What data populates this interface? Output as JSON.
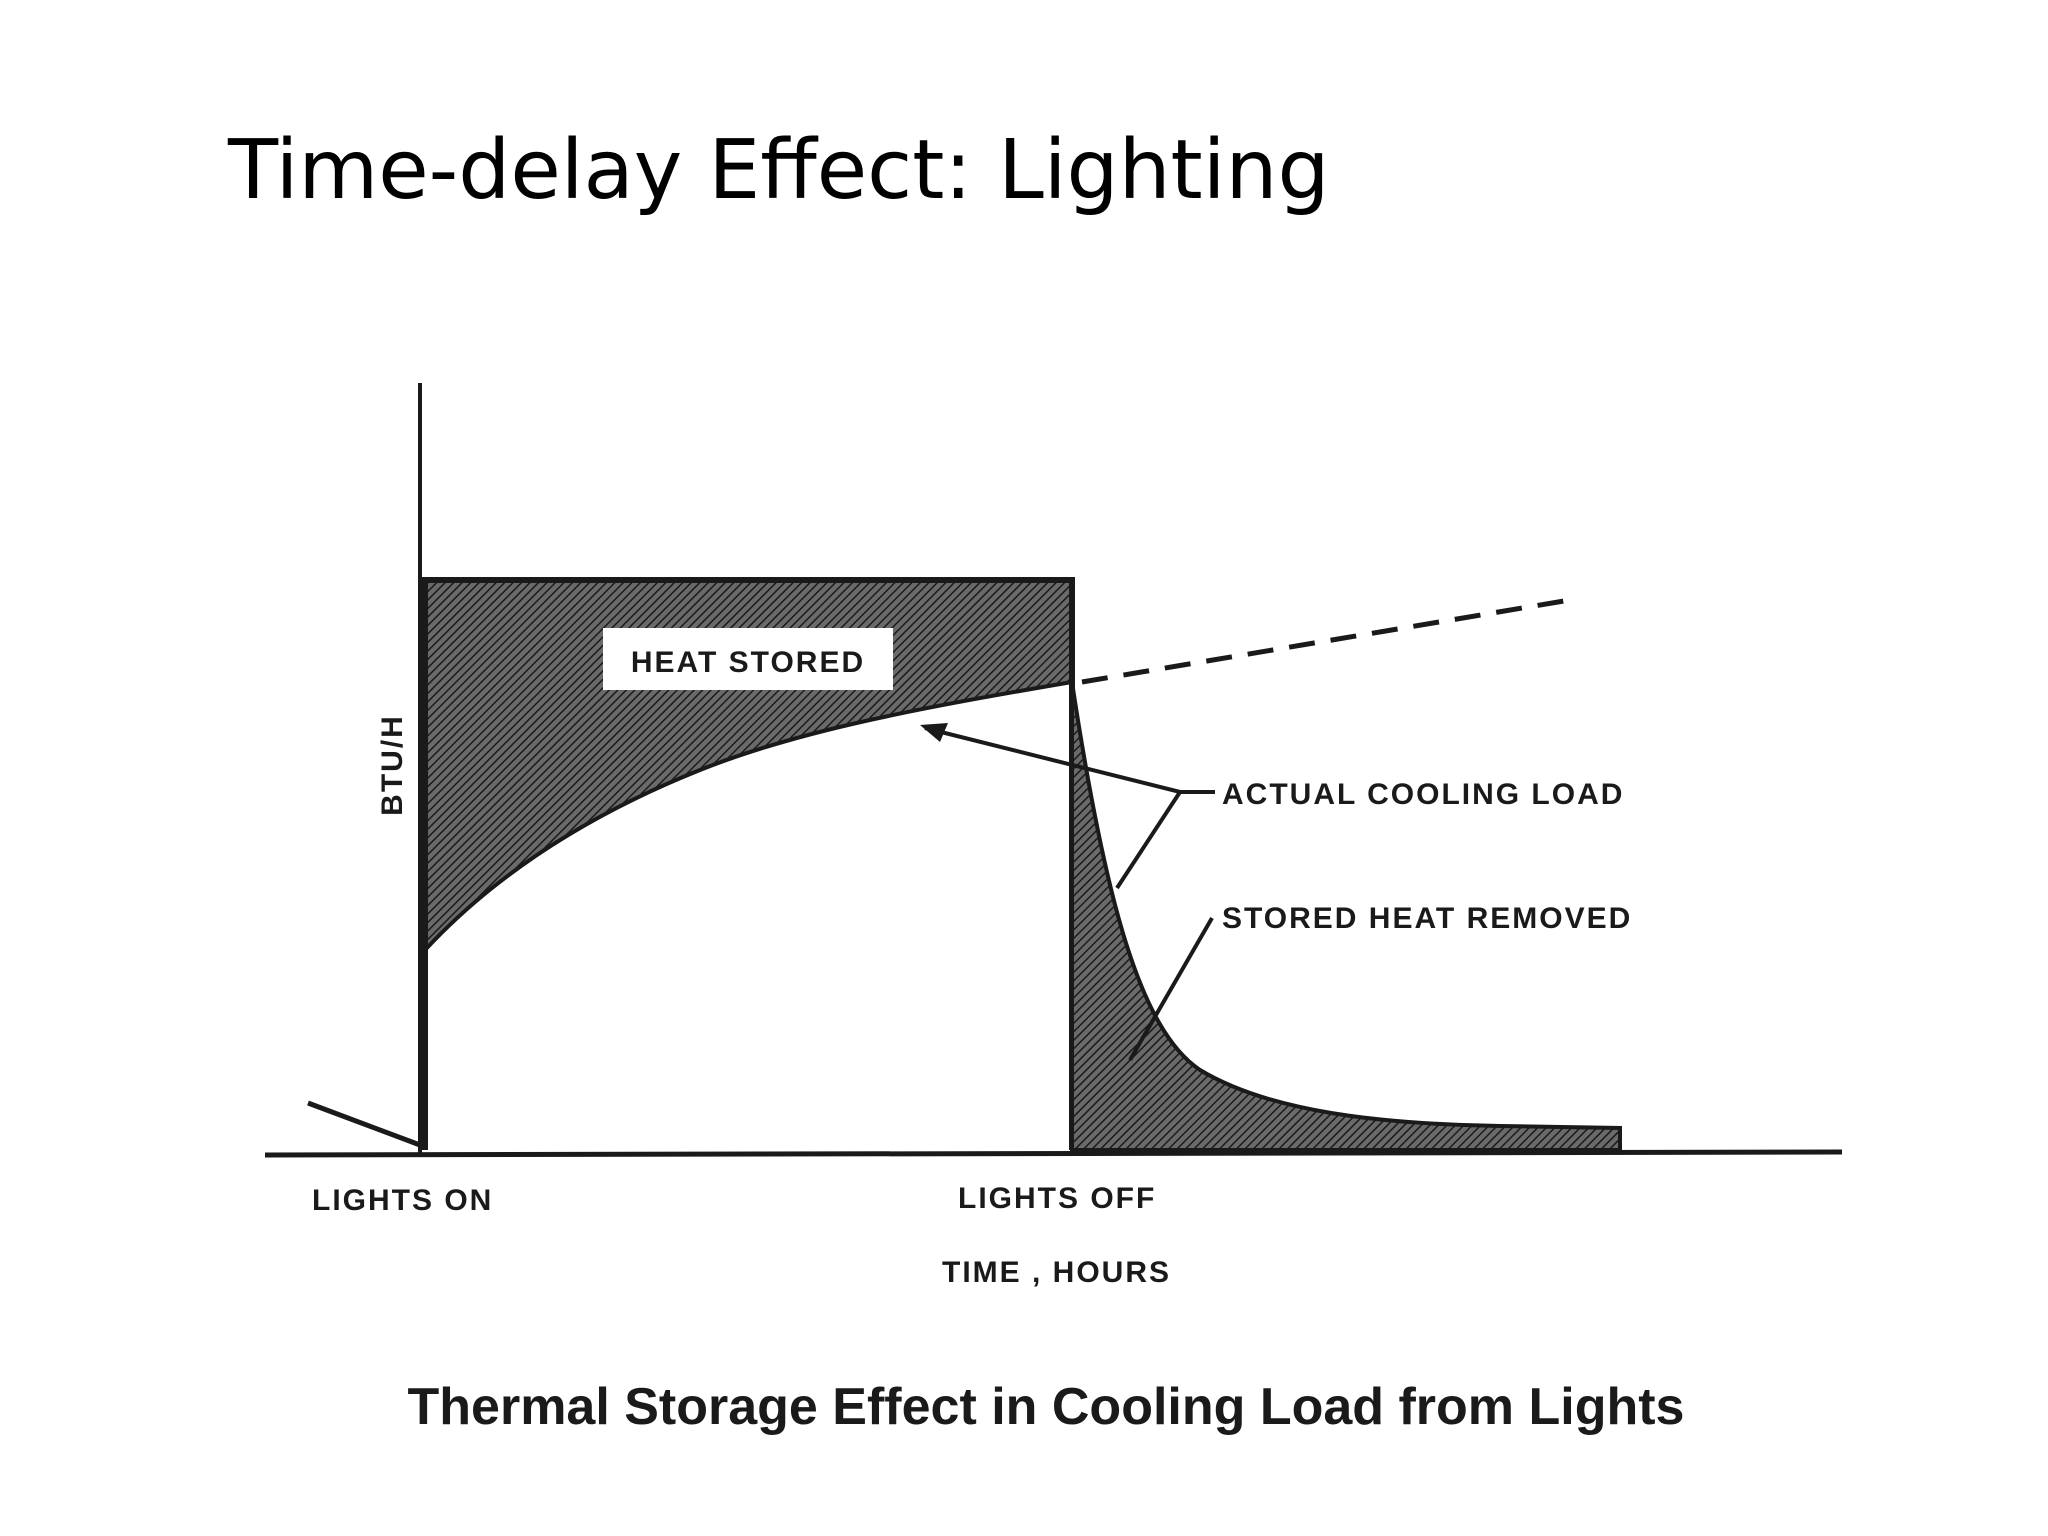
{
  "slide": {
    "title": "Time-delay Effect:  Lighting"
  },
  "diagram": {
    "y_axis_label": "BTU/H",
    "x_axis_label": "TIME , HOURS",
    "markers": {
      "lights_on": "LIGHTS ON",
      "lights_off": "LIGHTS OFF"
    },
    "regions": {
      "heat_stored": "HEAT STORED"
    },
    "annotations": {
      "actual_cooling_load": "ACTUAL COOLING LOAD",
      "stored_heat_removed": "STORED HEAT REMOVED"
    },
    "caption": "Thermal Storage Effect in Cooling Load from Lights"
  },
  "colors": {
    "ink": "#1a1a1a",
    "hatch_fill": "#4a4a4a",
    "background": "#ffffff"
  }
}
